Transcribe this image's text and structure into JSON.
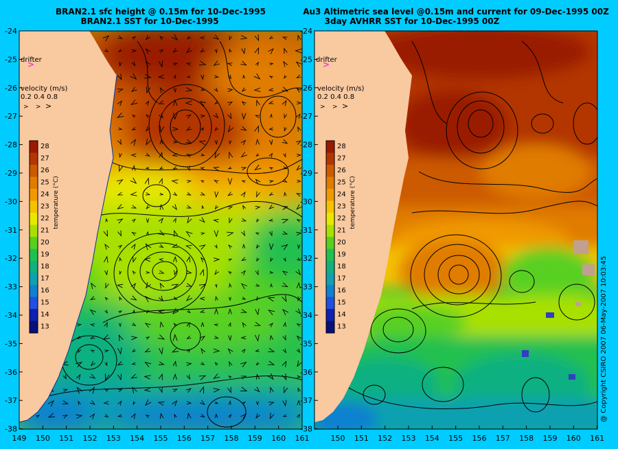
{
  "panels": [
    {
      "id": "left",
      "title_line1": "BRAN2.1 sfc height @ 0.15m for 10-Dec-1995",
      "title_line2": "BRAN2.1 SST for 10-Dec-1995",
      "drifter_label": "drifter",
      "velocity_title": "velocity (m/s)",
      "velocity_values": "0.2 0.4 0.8",
      "colorbar_label": "temperature (°C)"
    },
    {
      "id": "right",
      "title_line1": "Au3 Altimetric sea level  @0.15m and current for 09-Dec-1995 00Z",
      "title_line2": "3day AVHRR SST for 10-Dec-1995 00Z",
      "drifter_label": "drifter",
      "velocity_title": "velocity (m/s)",
      "velocity_values": "0.2 0.4 0.8",
      "colorbar_label": "temperature (°C)"
    }
  ],
  "lat_ticks": [
    "-24",
    "-25",
    "-26",
    "-27",
    "-28",
    "-29",
    "-30",
    "-31",
    "-32",
    "-33",
    "-34",
    "-35",
    "-36",
    "-37",
    "-38"
  ],
  "left_lon_ticks": [
    "149",
    "150",
    "151",
    "152",
    "153",
    "154",
    "155",
    "156",
    "157",
    "158",
    "159",
    "160",
    "161"
  ],
  "right_lon_ticks": [
    "150",
    "151",
    "152",
    "153",
    "154",
    "155",
    "156",
    "157",
    "158",
    "159",
    "160",
    "161"
  ],
  "colorbar_ticks": [
    "28",
    "27",
    "26",
    "25",
    "24",
    "23",
    "22",
    "21",
    "20",
    "19",
    "18",
    "17",
    "16",
    "15",
    "14",
    "13"
  ],
  "colorbar_colors": [
    "#9a1a00",
    "#b33600",
    "#cc5a00",
    "#e07c00",
    "#f09a00",
    "#f5c200",
    "#e8e800",
    "#a8e000",
    "#58d020",
    "#20c050",
    "#10b080",
    "#10a0b0",
    "#1080d0",
    "#2050e0",
    "#1020b0",
    "#08107a"
  ],
  "copyright": "@ Copyright CSIRO 2007 06-May-2007 10:03:45",
  "colors": {
    "background": "#00ccff",
    "land": "#f9c9a0",
    "drifter": "#ff33cc"
  }
}
